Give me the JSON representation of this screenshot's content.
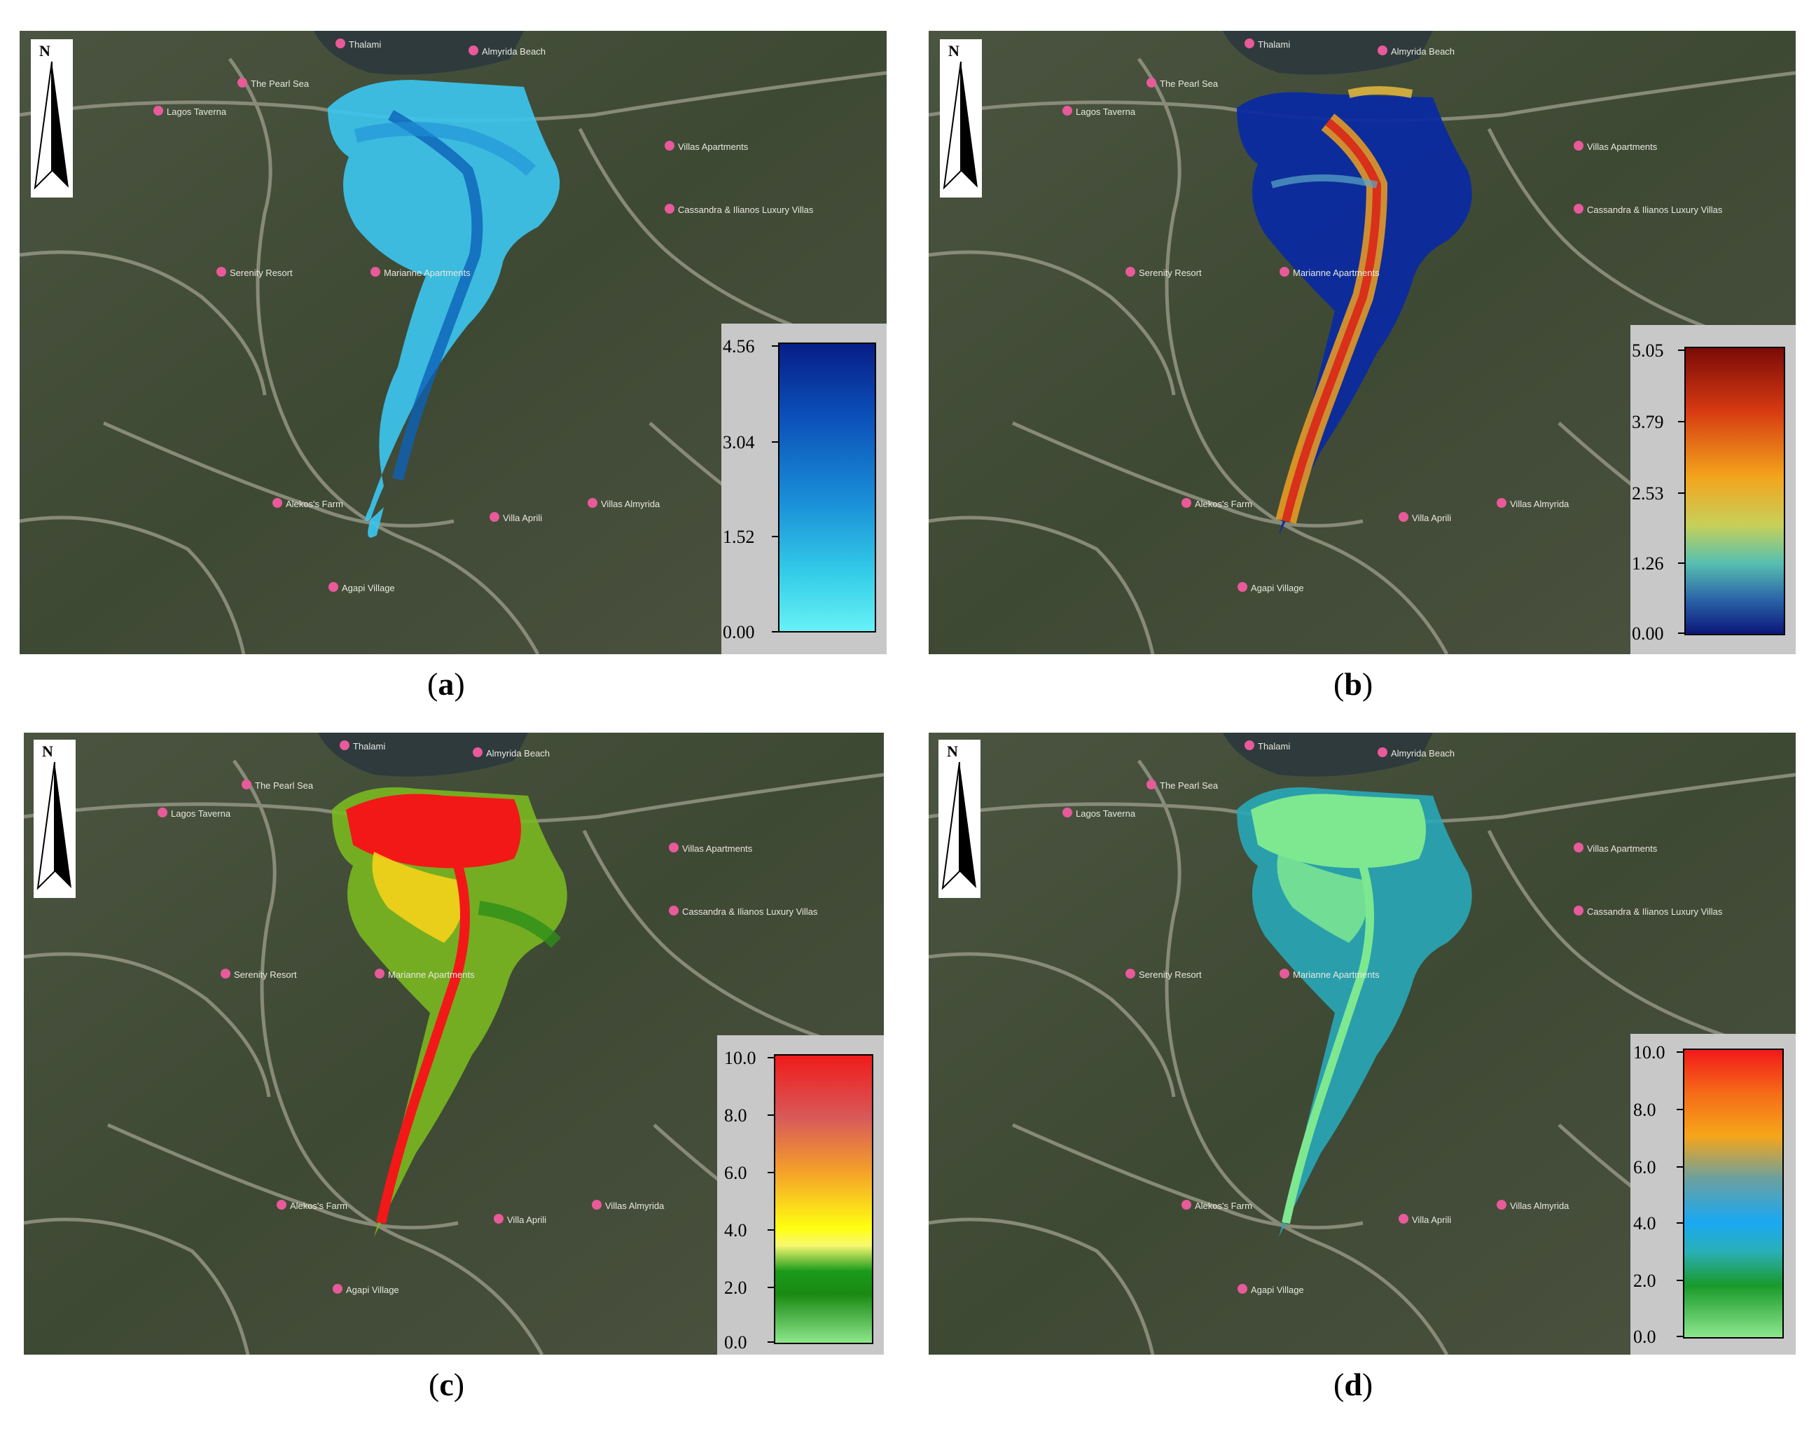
{
  "figure": {
    "panels": [
      {
        "id": "a",
        "caption_letter": "a",
        "north_label": "N",
        "map_labels": [
          "Thalami",
          "The Pearl Sea",
          "Lagos Taverna",
          "Marianne Apartments",
          "Serenity Resort",
          "Alekos's Farm",
          "Villa Aprili",
          "Villas Almyrida",
          "Agapi Village",
          "Cassandra & Ilianos Luxury Villas",
          "Villas Apartments",
          "Almyrida Beach"
        ],
        "legend": {
          "ticks": [
            "4.56",
            "3.04",
            "1.52",
            "0.00"
          ],
          "colors": [
            "#071d86",
            "#0b4fb8",
            "#1a8fd8",
            "#34cde8",
            "#68f2f6"
          ]
        },
        "overlay_colors": [
          "#1fb6e6",
          "#2da6e0",
          "#0d62b8"
        ]
      },
      {
        "id": "b",
        "caption_letter": "b",
        "north_label": "N",
        "map_labels": [
          "Thalami",
          "The Pearl Sea",
          "Lagos Taverna",
          "Marianne Apartments",
          "Serenity Resort",
          "Alekos's Farm",
          "Villa Aprili",
          "Villas Almyrida",
          "Agapi Village",
          "Cassandra & Ilianos Luxury Villas",
          "Villas Apartments",
          "Almyrida Beach"
        ],
        "legend": {
          "ticks": [
            "5.05",
            "3.79",
            "2.53",
            "1.26",
            "0.00"
          ],
          "colors": [
            "#7a0a07",
            "#d63a12",
            "#f4a41c",
            "#c6d05a",
            "#58c0b0",
            "#2a63a8",
            "#0b1578"
          ]
        },
        "overlay_colors": [
          "#0b2aa0",
          "#2a6ed0",
          "#c8d060",
          "#e4361a"
        ]
      },
      {
        "id": "c",
        "caption_letter": "c",
        "north_label": "N",
        "map_labels": [
          "Thalami",
          "The Pearl Sea",
          "Lagos Taverna",
          "Marianne Apartments",
          "Serenity Resort",
          "Alekos's Farm",
          "Villa Aprili",
          "Villas Almyrida",
          "Agapi Village",
          "Cassandra & Ilianos Luxury Villas",
          "Villas Apartments",
          "Almyrida Beach"
        ],
        "legend": {
          "ticks": [
            "10.0",
            "8.0",
            "6.0",
            "4.0",
            "2.0",
            "0.0"
          ],
          "colors": [
            "#f01a1a",
            "#d85a5a",
            "#f49e2a",
            "#ffff10",
            "#f8f870",
            "#1a9a1a",
            "#1a8a12",
            "#8ee88e"
          ]
        },
        "overlay_colors": [
          "#f21818",
          "#f6d21a",
          "#7ab820",
          "#2e8e1a"
        ]
      },
      {
        "id": "d",
        "caption_letter": "d",
        "north_label": "N",
        "map_labels": [
          "Thalami",
          "The Pearl Sea",
          "Lagos Taverna",
          "Marianne Apartments",
          "Serenity Resort",
          "Alekos's Farm",
          "Villa Aprili",
          "Villas Almyrida",
          "Agapi Village",
          "Cassandra & Ilianos Luxury Villas",
          "Villas Apartments",
          "Almyrida Beach"
        ],
        "legend": {
          "ticks": [
            "10.0",
            "8.0",
            "6.0",
            "4.0",
            "2.0",
            "0.0"
          ],
          "colors": [
            "#f2181a",
            "#f66a18",
            "#f6a61a",
            "#6aa0a0",
            "#1aa8f2",
            "#2ab0b8",
            "#1a9a2a",
            "#8ee890"
          ]
        },
        "overlay_colors": [
          "#7ee890",
          "#28a8b8",
          "#2ac0a0"
        ]
      }
    ]
  }
}
